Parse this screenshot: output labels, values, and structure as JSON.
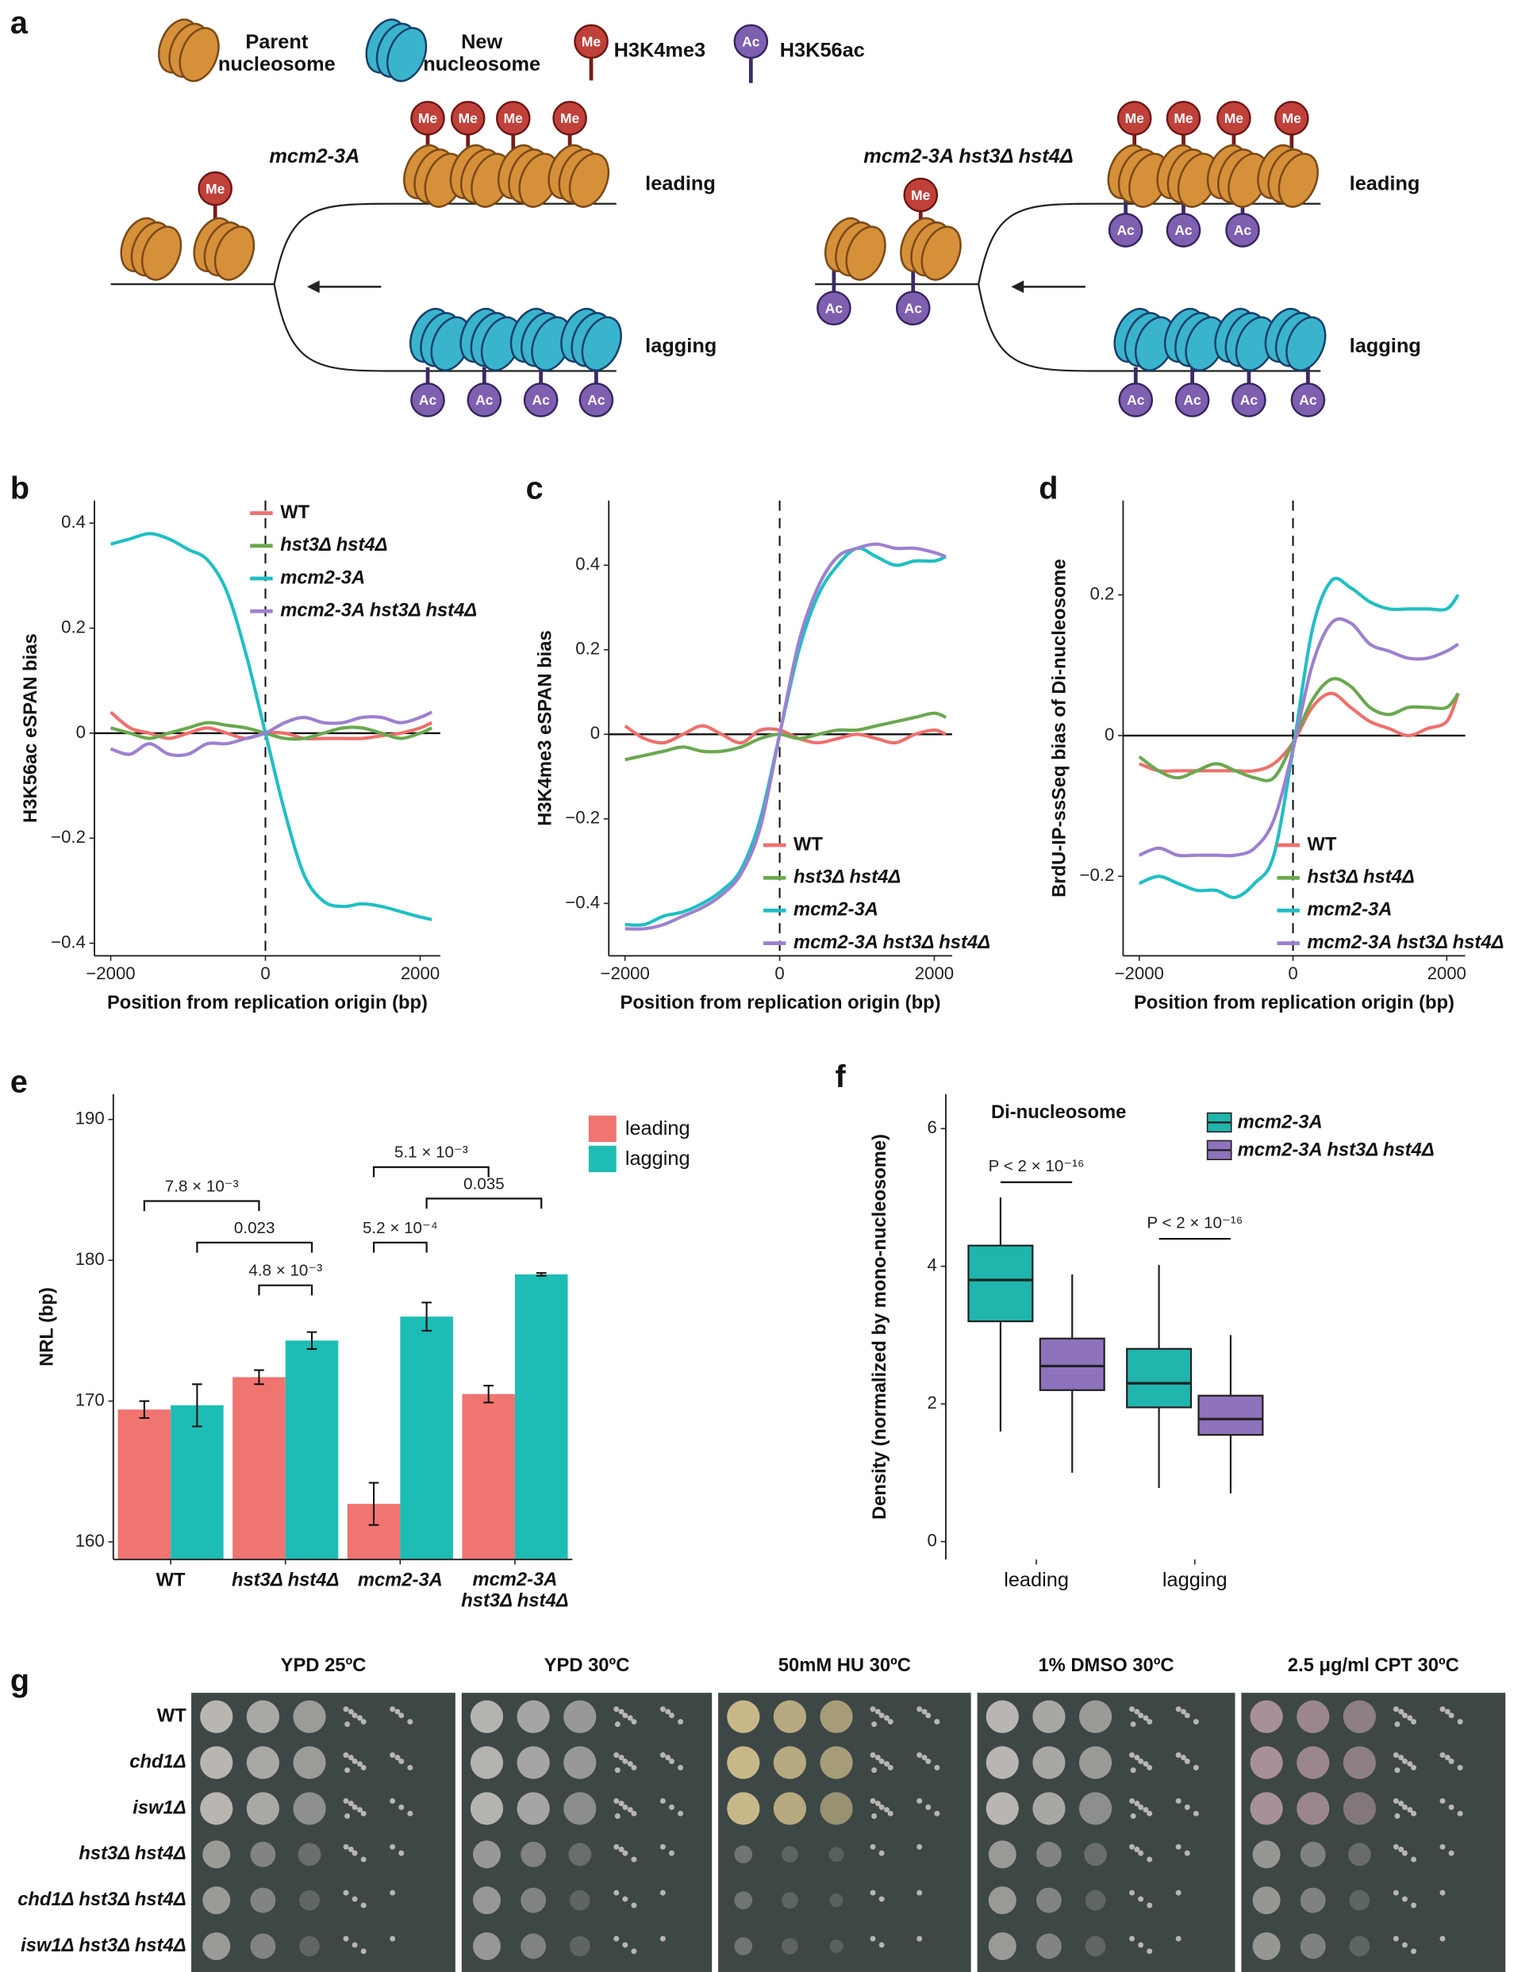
{
  "panel_labels": [
    "a",
    "b",
    "c",
    "d",
    "e",
    "f",
    "g"
  ],
  "diagram": {
    "legend": [
      {
        "label": "Parent\nnucleosome"
      },
      {
        "label": "New\nnucleosome"
      },
      {
        "label": "H3K4me3"
      },
      {
        "label": "H3K56ac"
      }
    ],
    "marks": {
      "me": "Me",
      "ac": "Ac"
    },
    "conditions": [
      {
        "label": "mcm2-3A",
        "leading": "leading",
        "lagging": "lagging"
      },
      {
        "label": "mcm2-3A hst3Δ hst4Δ",
        "leading": "leading",
        "lagging": "lagging"
      }
    ]
  },
  "chart_data": [
    {
      "type": "line",
      "xlabel": "Position from replication origin (bp)",
      "ylabel": "H3K56ac eSPAN bias",
      "x": [
        -2000,
        -1750,
        -1500,
        -1250,
        -1000,
        -750,
        -500,
        -250,
        0,
        250,
        500,
        750,
        1000,
        1250,
        1500,
        1750,
        2000,
        2150
      ],
      "series": [
        {
          "name": "WT",
          "color": "#ef6f6c",
          "values": [
            0.04,
            0.01,
            0.0,
            -0.01,
            0.0,
            0.01,
            0.0,
            -0.01,
            0,
            0.0,
            -0.01,
            -0.01,
            -0.01,
            -0.01,
            -0.005,
            0,
            0.01,
            0.02
          ]
        },
        {
          "name": "hst3Δ hst4Δ",
          "color": "#6aa84f",
          "values": [
            0.01,
            0.0,
            -0.01,
            0.0,
            0.01,
            0.02,
            0.015,
            0.01,
            0,
            -0.01,
            -0.01,
            0.0,
            0.01,
            0.01,
            0.0,
            -0.01,
            0.0,
            0.01
          ]
        },
        {
          "name": "mcm2-3A",
          "color": "#1fbfc4",
          "values": [
            0.36,
            0.37,
            0.38,
            0.37,
            0.35,
            0.33,
            0.27,
            0.15,
            0,
            -0.15,
            -0.27,
            -0.32,
            -0.33,
            -0.325,
            -0.33,
            -0.34,
            -0.35,
            -0.355
          ]
        },
        {
          "name": "mcm2-3A hst3Δ hst4Δ",
          "color": "#9d80d0",
          "values": [
            -0.03,
            -0.04,
            -0.02,
            -0.04,
            -0.04,
            -0.02,
            -0.02,
            -0.01,
            0,
            0.02,
            0.03,
            0.02,
            0.02,
            0.03,
            0.03,
            0.02,
            0.03,
            0.04
          ]
        }
      ],
      "xlim": [
        -2210,
        2260
      ],
      "ylim": [
        -0.424,
        0.443
      ],
      "xticks": [
        {
          "value": -2000,
          "label": "−2000"
        },
        0,
        2000
      ],
      "yticks": [
        {
          "value": -0.4,
          "label": "−0.4"
        },
        {
          "value": -0.2,
          "label": "−0.2"
        },
        0,
        0.2,
        0.4
      ],
      "hline": 0,
      "vline": 0,
      "legend": "top-right"
    },
    {
      "type": "line",
      "xlabel": "Position from replication origin (bp)",
      "ylabel": "H3K4me3 eSPAN bias",
      "x": [
        -2000,
        -1750,
        -1500,
        -1250,
        -1000,
        -750,
        -500,
        -250,
        0,
        250,
        500,
        750,
        1000,
        1250,
        1500,
        1750,
        2000,
        2150
      ],
      "series": [
        {
          "name": "WT",
          "color": "#ef6f6c",
          "values": [
            0.02,
            -0.01,
            -0.02,
            0.0,
            0.02,
            0.0,
            -0.02,
            0.01,
            0.01,
            -0.01,
            -0.02,
            -0.01,
            0.0,
            -0.01,
            -0.02,
            0.0,
            0.01,
            0.0
          ]
        },
        {
          "name": "hst3Δ hst4Δ",
          "color": "#6aa84f",
          "values": [
            -0.06,
            -0.05,
            -0.04,
            -0.03,
            -0.04,
            -0.04,
            -0.03,
            -0.01,
            0,
            -0.01,
            0.0,
            0.01,
            0.01,
            0.02,
            0.03,
            0.04,
            0.05,
            0.04
          ]
        },
        {
          "name": "mcm2-3A",
          "color": "#1fbfc4",
          "values": [
            -0.45,
            -0.45,
            -0.43,
            -0.42,
            -0.4,
            -0.37,
            -0.32,
            -0.2,
            0,
            0.2,
            0.33,
            0.4,
            0.44,
            0.42,
            0.4,
            0.41,
            0.41,
            0.42
          ]
        },
        {
          "name": "mcm2-3A hst3Δ hst4Δ",
          "color": "#9d80d0",
          "values": [
            -0.46,
            -0.46,
            -0.45,
            -0.43,
            -0.41,
            -0.38,
            -0.33,
            -0.22,
            0,
            0.22,
            0.35,
            0.42,
            0.44,
            0.45,
            0.44,
            0.44,
            0.43,
            0.42
          ]
        }
      ],
      "xlim": [
        -2210,
        2230
      ],
      "ylim": [
        -0.524,
        0.553
      ],
      "xticks": [
        {
          "value": -2000,
          "label": "−2000"
        },
        0,
        2000
      ],
      "yticks": [
        {
          "value": -0.4,
          "label": "−0.4"
        },
        {
          "value": -0.2,
          "label": "−0.2"
        },
        0,
        0.2,
        0.4
      ],
      "hline": 0,
      "vline": 0,
      "legend": "bottom-right"
    },
    {
      "type": "line",
      "xlabel": "Position from replication origin (bp)",
      "ylabel": "BrdU-IP-ssSeq bias of Di-nucleosome",
      "x": [
        -2000,
        -1750,
        -1500,
        -1250,
        -1000,
        -750,
        -500,
        -250,
        0,
        250,
        500,
        750,
        1000,
        1250,
        1500,
        1750,
        2000,
        2150
      ],
      "series": [
        {
          "name": "WT",
          "color": "#ef6f6c",
          "values": [
            -0.04,
            -0.05,
            -0.05,
            -0.05,
            -0.05,
            -0.05,
            -0.05,
            -0.04,
            -0.01,
            0.04,
            0.06,
            0.04,
            0.02,
            0.01,
            0.0,
            0.01,
            0.02,
            0.06
          ]
        },
        {
          "name": "hst3Δ hst4Δ",
          "color": "#6aa84f",
          "values": [
            -0.03,
            -0.05,
            -0.06,
            -0.05,
            -0.04,
            -0.05,
            -0.06,
            -0.06,
            -0.01,
            0.05,
            0.08,
            0.07,
            0.04,
            0.03,
            0.04,
            0.04,
            0.04,
            0.06
          ]
        },
        {
          "name": "mcm2-3A",
          "color": "#1fbfc4",
          "values": [
            -0.21,
            -0.2,
            -0.21,
            -0.22,
            -0.22,
            -0.23,
            -0.21,
            -0.17,
            -0.02,
            0.15,
            0.22,
            0.21,
            0.19,
            0.18,
            0.18,
            0.18,
            0.18,
            0.2
          ]
        },
        {
          "name": "mcm2-3A hst3Δ hst4Δ",
          "color": "#9d80d0",
          "values": [
            -0.17,
            -0.16,
            -0.17,
            -0.17,
            -0.17,
            -0.17,
            -0.16,
            -0.12,
            -0.02,
            0.1,
            0.16,
            0.16,
            0.13,
            0.12,
            0.11,
            0.11,
            0.12,
            0.13
          ]
        }
      ],
      "xlim": [
        -2210,
        2240
      ],
      "ylim": [
        -0.313,
        0.334
      ],
      "xticks": [
        {
          "value": -2000,
          "label": "−2000"
        },
        0,
        2000
      ],
      "yticks": [
        {
          "value": -0.2,
          "label": "−0.2"
        },
        0,
        0.2
      ],
      "hline": 0,
      "vline": 0,
      "legend": "bottom-right"
    },
    {
      "type": "bar",
      "ylabel": "NRL (bp)",
      "categories": [
        "WT",
        "hst3Δ hst4Δ",
        "mcm2-3A",
        "mcm2-3A\nhst3Δ hst4Δ"
      ],
      "series": [
        {
          "name": "leading",
          "color": "#f07470",
          "values": [
            169.4,
            171.7,
            162.7,
            170.5
          ],
          "errors": [
            0.6,
            0.5,
            1.5,
            0.6
          ]
        },
        {
          "name": "lagging",
          "color": "#1dbdb5",
          "values": [
            169.7,
            174.3,
            176.0,
            179.0
          ],
          "errors": [
            1.5,
            0.6,
            1.0,
            0.1
          ]
        }
      ],
      "ylim": [
        158.75,
        191.8
      ],
      "yticks": [
        160,
        170,
        180,
        190
      ],
      "brackets": [
        {
          "text": "7.8 × 10⁻³",
          "from": [
            0,
            0
          ],
          "to": [
            1,
            0
          ]
        },
        {
          "text": "0.023",
          "from": [
            0,
            1
          ],
          "to": [
            1,
            1
          ]
        },
        {
          "text": "4.8 × 10⁻³",
          "from": [
            1,
            0
          ],
          "to": [
            1,
            1
          ]
        },
        {
          "text": "5.1 × 10⁻³",
          "from": [
            2,
            0
          ],
          "to": [
            3,
            0
          ]
        },
        {
          "text": "0.035",
          "from": [
            2,
            1
          ],
          "to": [
            3,
            1
          ]
        },
        {
          "text": "5.2 × 10⁻⁴",
          "from": [
            2,
            0
          ],
          "to": [
            2,
            1
          ]
        }
      ]
    },
    {
      "type": "box",
      "title": "Di-nucleosome",
      "ylabel": "Density (normalized by mono-nucleosome)",
      "categories": [
        "leading",
        "lagging"
      ],
      "series": [
        {
          "name": "mcm2-3A",
          "color": "#20b5ad",
          "boxes": [
            {
              "low": 1.6,
              "q1": 3.2,
              "median": 3.8,
              "q3": 4.3,
              "high": 5.0
            },
            {
              "low": 0.78,
              "q1": 1.95,
              "median": 2.3,
              "q3": 2.8,
              "high": 4.02
            }
          ]
        },
        {
          "name": "mcm2-3A hst3Δ hst4Δ",
          "color": "#8e72bb",
          "boxes": [
            {
              "low": 1.0,
              "q1": 2.2,
              "median": 2.55,
              "q3": 2.95,
              "high": 3.88
            },
            {
              "low": 0.7,
              "q1": 1.55,
              "median": 1.78,
              "q3": 2.12,
              "high": 3.0
            }
          ]
        }
      ],
      "ylim": [
        -0.26,
        6.5
      ],
      "yticks": [
        0,
        2,
        4,
        6
      ],
      "annotations": [
        {
          "text": "P < 2 × 10⁻¹⁶",
          "from": [
            0,
            0
          ],
          "to": [
            0,
            1
          ]
        },
        {
          "text": "P < 2 × 10⁻¹⁶",
          "from": [
            1,
            0
          ],
          "to": [
            1,
            1
          ]
        }
      ]
    }
  ],
  "plates": {
    "conditions": [
      "YPD 25ºC",
      "YPD 30ºC",
      "50mM HU 30ºC",
      "1% DMSO 30ºC",
      "2.5 μg/ml CPT 30ºC"
    ],
    "strains": [
      "WT",
      "chd1Δ",
      "isw1Δ",
      "hst3Δ hst4Δ",
      "chd1Δ hst3Δ hst4Δ",
      "isw1Δ hst3Δ hst4Δ"
    ]
  }
}
